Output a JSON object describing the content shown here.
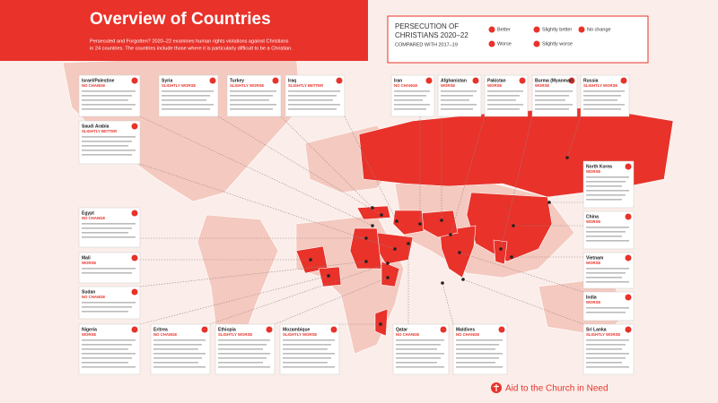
{
  "header": {
    "title": "Overview of Countries",
    "subtitle_lines": [
      "Persecuted and Forgotten? 2020–22 examines human rights violations against Christians",
      "in 24 countries. The countries include those where it is particularly difficult to be a Christian."
    ]
  },
  "legend": {
    "title_lines": [
      "PERSECUTION OF",
      "CHRISTIANS 2020–22"
    ],
    "subtitle": "COMPARED WITH 2017–19",
    "items": [
      "Better",
      "Slightly better",
      "No change",
      "Worse",
      "Slightly worse"
    ]
  },
  "countries": [
    {
      "name": "Israel/Palestine",
      "status": "NO CHANGE"
    },
    {
      "name": "Syria",
      "status": "SLIGHTLY WORSE"
    },
    {
      "name": "Turkey",
      "status": "SLIGHTLY WORSE"
    },
    {
      "name": "Iraq",
      "status": "SLIGHTLY BETTER"
    },
    {
      "name": "Iran",
      "status": "NO CHANGE"
    },
    {
      "name": "Afghanistan",
      "status": "WORSE"
    },
    {
      "name": "Pakistan",
      "status": "WORSE"
    },
    {
      "name": "Burma (Myanmar)",
      "status": "WORSE"
    },
    {
      "name": "Russia",
      "status": "SLIGHTLY WORSE"
    },
    {
      "name": "Saudi Arabia",
      "status": "SLIGHTLY BETTER"
    },
    {
      "name": "Egypt",
      "status": "NO CHANGE"
    },
    {
      "name": "Mali",
      "status": "WORSE"
    },
    {
      "name": "Sudan",
      "status": "NO CHANGE"
    },
    {
      "name": "Nigeria",
      "status": "WORSE"
    },
    {
      "name": "Eritrea",
      "status": "NO CHANGE"
    },
    {
      "name": "Ethiopia",
      "status": "SLIGHTLY WORSE"
    },
    {
      "name": "Mozambique",
      "status": "SLIGHTLY WORSE"
    },
    {
      "name": "Qatar",
      "status": "NO CHANGE"
    },
    {
      "name": "Maldives",
      "status": "NO CHANGE"
    },
    {
      "name": "North Korea",
      "status": "WORSE"
    },
    {
      "name": "China",
      "status": "WORSE"
    },
    {
      "name": "Vietnam",
      "status": "WORSE"
    },
    {
      "name": "India",
      "status": "WORSE"
    },
    {
      "name": "Sri Lanka",
      "status": "SLIGHTLY WORSE"
    }
  ],
  "footer": {
    "org": "Aid to the Church in Need"
  }
}
